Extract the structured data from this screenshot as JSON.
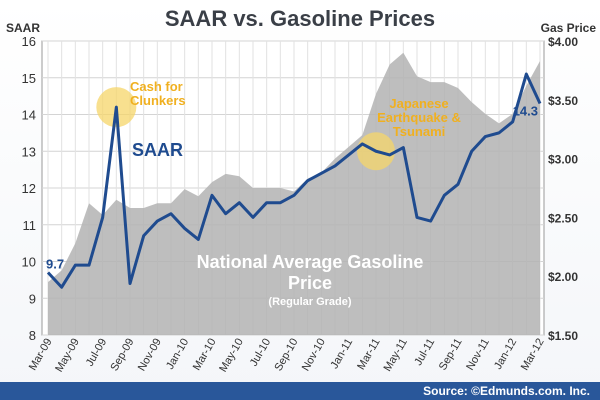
{
  "title": "SAAR vs. Gasoline Prices",
  "left_unit": "SAAR",
  "right_unit": "Gas Price",
  "source": "Source: ©Edmunds.com. Inc.",
  "annotations": {
    "cash": "Cash for Clunkers",
    "quake": "Japanese Earthquake & Tsunami"
  },
  "series_labels": {
    "saar": "SAAR",
    "gas_line1": "National Average Gasoline",
    "gas_line2": "Price",
    "gas_sub": "(Regular Grade)"
  },
  "colors": {
    "saar_line": "#1f4b8f",
    "gas_area": "#b3b3b3",
    "highlight": "#f5d56a",
    "annotation_text": "#f0b020",
    "source_bar": "#29579a"
  },
  "chart_data": {
    "type": "line",
    "categories": [
      "Mar-09",
      "Apr-09",
      "May-09",
      "Jun-09",
      "Jul-09",
      "Aug-09",
      "Sep-09",
      "Oct-09",
      "Nov-09",
      "Dec-09",
      "Jan-10",
      "Feb-10",
      "Mar-10",
      "Apr-10",
      "May-10",
      "Jun-10",
      "Jul-10",
      "Aug-10",
      "Sep-10",
      "Oct-10",
      "Nov-10",
      "Dec-10",
      "Jan-11",
      "Feb-11",
      "Mar-11",
      "Apr-11",
      "May-11",
      "Jun-11",
      "Jul-11",
      "Aug-11",
      "Sep-11",
      "Oct-11",
      "Nov-11",
      "Dec-11",
      "Jan-12",
      "Feb-12",
      "Mar-12"
    ],
    "tick_labels": [
      "Mar-09",
      "May-09",
      "Jul-09",
      "Sep-09",
      "Nov-09",
      "Jan-10",
      "Mar-10",
      "May-10",
      "Jul-10",
      "Sep-10",
      "Nov-10",
      "Jan-11",
      "Mar-11",
      "May-11",
      "Jul-11",
      "Sep-11",
      "Nov-11",
      "Jan-12",
      "Mar-12"
    ],
    "series": [
      {
        "name": "SAAR",
        "axis": "left",
        "kind": "line",
        "values": [
          9.7,
          9.3,
          9.9,
          9.9,
          11.2,
          14.2,
          9.4,
          10.7,
          11.1,
          11.3,
          10.9,
          10.6,
          11.8,
          11.3,
          11.6,
          11.2,
          11.6,
          11.6,
          11.8,
          12.2,
          12.4,
          12.6,
          12.9,
          13.2,
          13.0,
          12.9,
          13.1,
          11.2,
          11.1,
          11.8,
          12.1,
          13.0,
          13.4,
          13.5,
          13.8,
          15.1,
          14.3
        ]
      },
      {
        "name": "National Average Gasoline Price",
        "axis": "right",
        "kind": "area",
        "values": [
          1.95,
          2.05,
          2.28,
          2.62,
          2.52,
          2.65,
          2.58,
          2.58,
          2.62,
          2.62,
          2.74,
          2.68,
          2.8,
          2.87,
          2.85,
          2.75,
          2.75,
          2.75,
          2.72,
          2.83,
          2.88,
          3.0,
          3.1,
          3.2,
          3.55,
          3.8,
          3.9,
          3.7,
          3.65,
          3.65,
          3.6,
          3.48,
          3.38,
          3.3,
          3.38,
          3.62,
          3.83
        ]
      }
    ],
    "yleft": {
      "ticks": [
        "8",
        "9",
        "10",
        "11",
        "12",
        "13",
        "14",
        "15",
        "16"
      ],
      "range": [
        8,
        16
      ]
    },
    "yright": {
      "ticks": [
        "$1.50",
        "$2.00",
        "$2.50",
        "$3.00",
        "$3.50",
        "$4.00"
      ],
      "range": [
        1.5,
        4.0
      ]
    },
    "data_labels": {
      "first": "9.7",
      "last": "14.3"
    },
    "grid": true
  }
}
